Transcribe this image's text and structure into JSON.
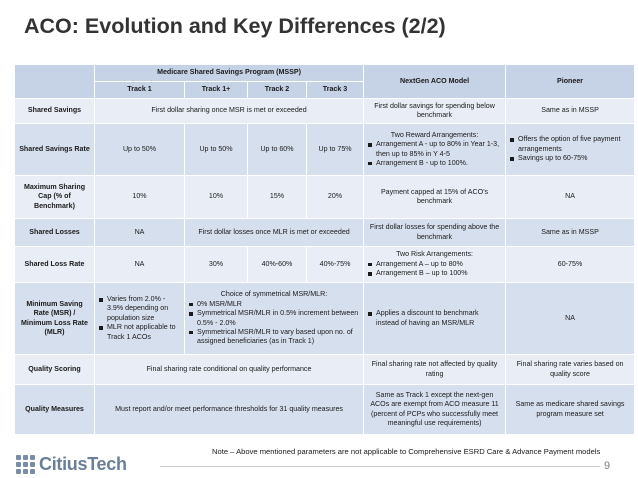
{
  "title": "ACO: Evolution and Key Differences (2/2)",
  "table": {
    "header": {
      "mssp": "Medicare Shared Savings Program (MSSP)",
      "nextgen": "NextGen ACO Model",
      "pioneer": "Pioneer",
      "tracks": [
        "Track 1",
        "Track 1+",
        "Track 2",
        "Track 3"
      ]
    },
    "rows": {
      "shared_savings": {
        "label": "Shared Savings",
        "mssp": "First dollar sharing once MSR is met or exceeded",
        "nextgen": "First dollar savings for spending below benchmark",
        "pioneer": "Same as in MSSP"
      },
      "shared_savings_rate": {
        "label": "Shared Savings Rate",
        "t1": "Up to 50%",
        "t1p": "Up to 50%",
        "t2": "Up to 60%",
        "t3": "Up to 75%",
        "nextgen_intro": "Two Reward Arrangements:",
        "nextgen_bullets": [
          "Arrangement A - up to 80% in Year 1-3, then up to 85% in Y 4-5",
          "Arrangement B - up to 100%."
        ],
        "pioneer_bullets": [
          "Offers the option of five payment arrangements",
          "Savings up to 60-75%"
        ]
      },
      "max_sharing_cap": {
        "label": "Maximum Sharing Cap (% of Benchmark)",
        "t1": "10%",
        "t1p": "10%",
        "t2": "15%",
        "t3": "20%",
        "nextgen": "Payment capped at 15% of ACO’s benchmark",
        "pioneer": "NA"
      },
      "shared_losses": {
        "label": "Shared Losses",
        "t1": "NA",
        "t1p_to_t3": "First dollar losses once MLR is met or exceeded",
        "nextgen": "First dollar losses for spending above the benchmark",
        "pioneer": "Same as in MSSP"
      },
      "shared_loss_rate": {
        "label": "Shared Loss Rate",
        "t1": "NA",
        "t1p": "30%",
        "t2": "40%-60%",
        "t3": "40%-75%",
        "nextgen_intro": "Two Risk Arrangements:",
        "nextgen_bullets": [
          "Arrangement A – up to 80%",
          "Arrangement B – up to 100%"
        ],
        "pioneer": "60-75%"
      },
      "min_saving_rate": {
        "label": "Minimum Saving Rate (MSR) / Minimum Loss Rate (MLR)",
        "t1_bullets": [
          "Varies from 2.0% - 3.9% depending on population size",
          "MLR not applicable to Track 1 ACOs"
        ],
        "t1p_intro": "Choice of symmetrical MSR/MLR:",
        "t1p_bullets": [
          "0% MSR/MLR",
          "Symmetrical MSR/MLR in 0.5% increment between 0.5% - 2.0%",
          "Symmetrical MSR/MLR to vary based upon no. of assigned beneficiaries (as in Track 1)"
        ],
        "nextgen_bullets": [
          "Applies a discount to benchmark instead of having an MSR/MLR"
        ],
        "pioneer": "NA"
      },
      "quality_scoring": {
        "label": "Quality Scoring",
        "mssp": "Final sharing rate conditional on quality performance",
        "nextgen": "Final sharing rate not affected by quality rating",
        "pioneer": "Final sharing rate varies based on quality score"
      },
      "quality_measures": {
        "label": "Quality Measures",
        "mssp": "Must report and/or meet performance thresholds for 31 quality measures",
        "nextgen": "Same as Track 1 except the next-gen ACOs are exempt from ACO measure 11 (percent of PCPs who successfully meet meaningful use requirements)",
        "pioneer": "Same as medicare shared savings program measure set"
      }
    }
  },
  "footnote": "Note – Above mentioned parameters are not applicable to Comprehensive ESRD Care & Advance Payment models",
  "logo_text": "CitiusTech",
  "page_number": "9"
}
